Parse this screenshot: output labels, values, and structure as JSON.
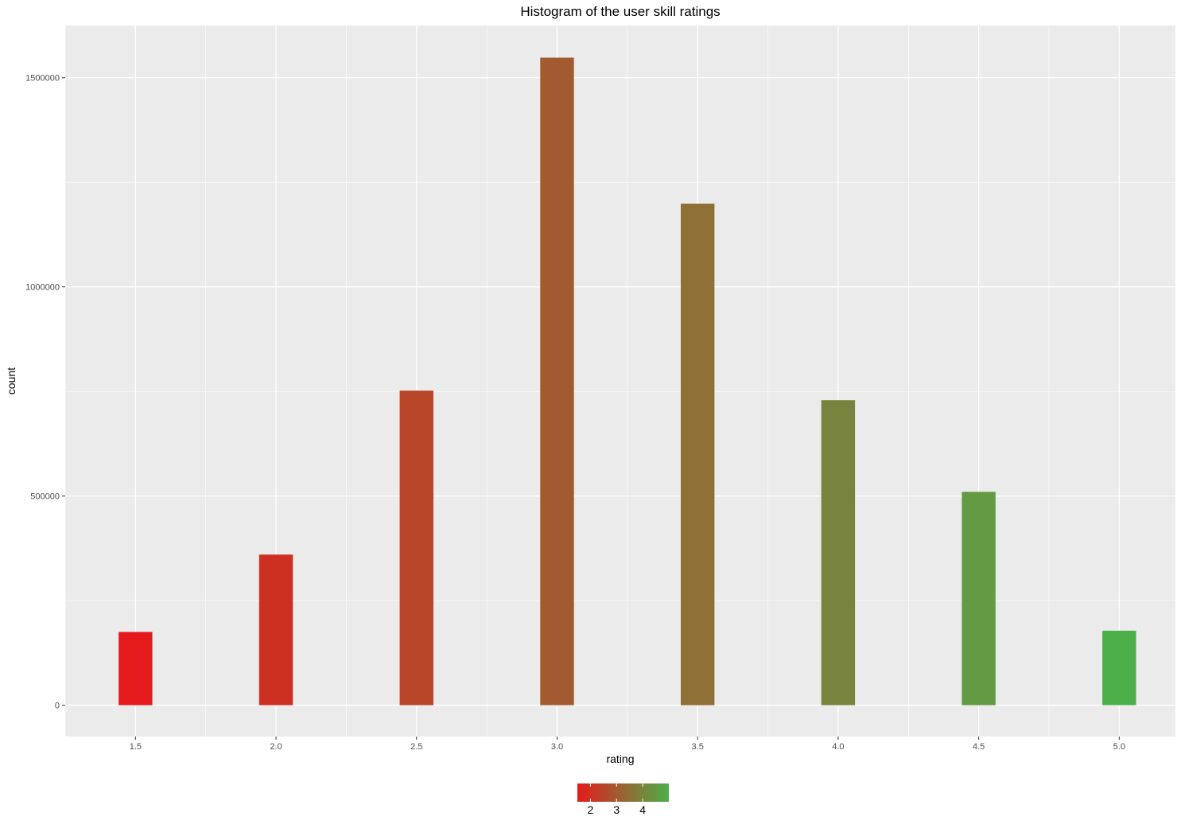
{
  "chart_data": {
    "type": "bar",
    "title": "Histogram of the user skill ratings",
    "xlabel": "rating",
    "ylabel": "count",
    "x": [
      1.5,
      2.0,
      2.5,
      3.0,
      3.5,
      4.0,
      4.5,
      5.0
    ],
    "values": [
      175000,
      360000,
      752000,
      1548000,
      1199000,
      729000,
      510000,
      178000
    ],
    "xlim": [
      1.25,
      5.2
    ],
    "ylim": [
      -75000,
      1625000
    ],
    "x_ticks": [
      "1.5",
      "2.0",
      "2.5",
      "3.0",
      "3.5",
      "4.0",
      "4.5",
      "5.0"
    ],
    "x_tick_values": [
      1.5,
      2.0,
      2.5,
      3.0,
      3.5,
      4.0,
      4.5,
      5.0
    ],
    "y_ticks": [
      "0",
      "500000",
      "1000000",
      "1500000"
    ],
    "y_tick_values": [
      0,
      500000,
      1000000,
      1500000
    ],
    "grid": true,
    "panel_background": "#EBEBEB",
    "gridline_color": "#FFFFFF",
    "fill_gradient": {
      "low": "#E41A1C",
      "high": "#4DAF4A",
      "limits": [
        1.5,
        5.0
      ]
    },
    "legend": {
      "type": "colorbar",
      "placement": "bottom",
      "labels": [
        "2",
        "3",
        "4"
      ],
      "label_values": [
        2,
        3,
        4
      ]
    }
  }
}
